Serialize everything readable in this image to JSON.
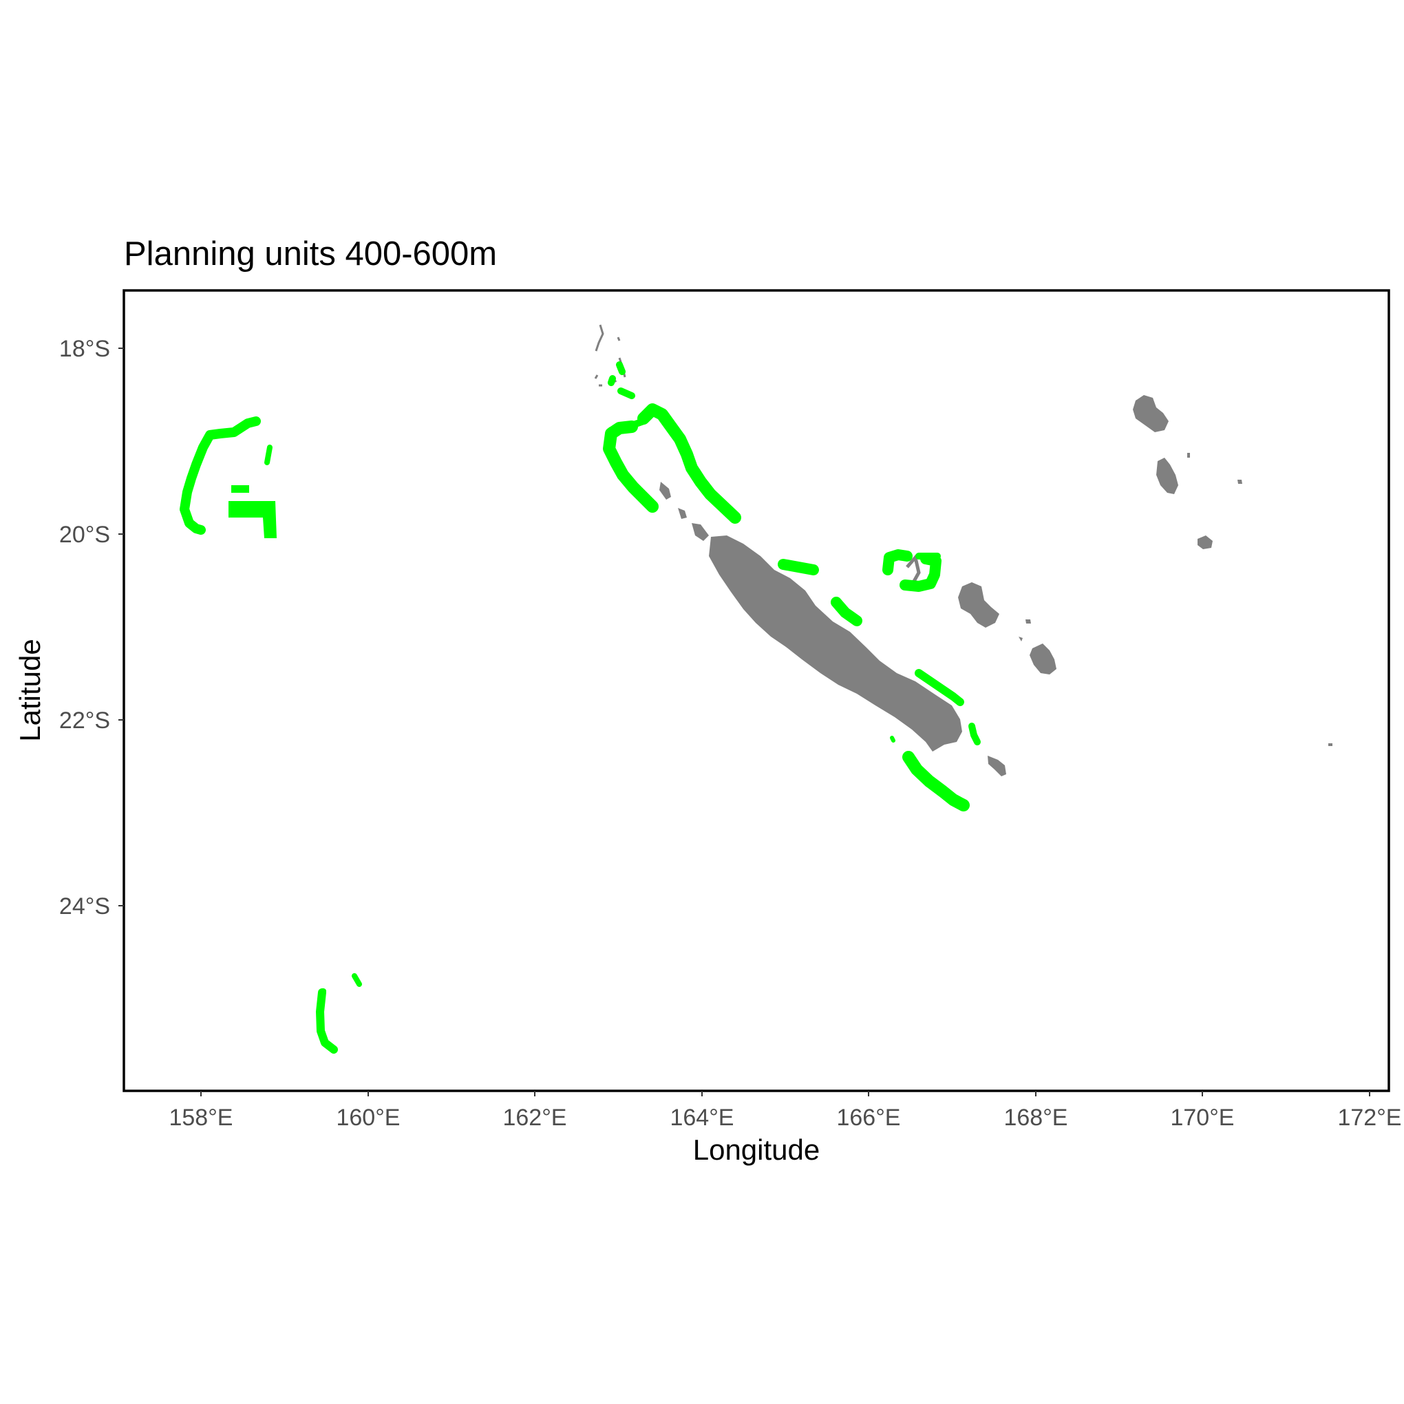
{
  "title": "Planning units 400-600m",
  "x_axis": {
    "label": "Longitude",
    "ticks": [
      "158°E",
      "160°E",
      "162°E",
      "164°E",
      "166°E",
      "168°E",
      "170°E",
      "172°E"
    ]
  },
  "y_axis": {
    "label": "Latitude",
    "ticks": [
      "18°S",
      "20°S",
      "22°S",
      "24°S"
    ]
  },
  "colors": {
    "planning_units": "#00ff00",
    "land": "#808080",
    "frame": "#000000"
  }
}
